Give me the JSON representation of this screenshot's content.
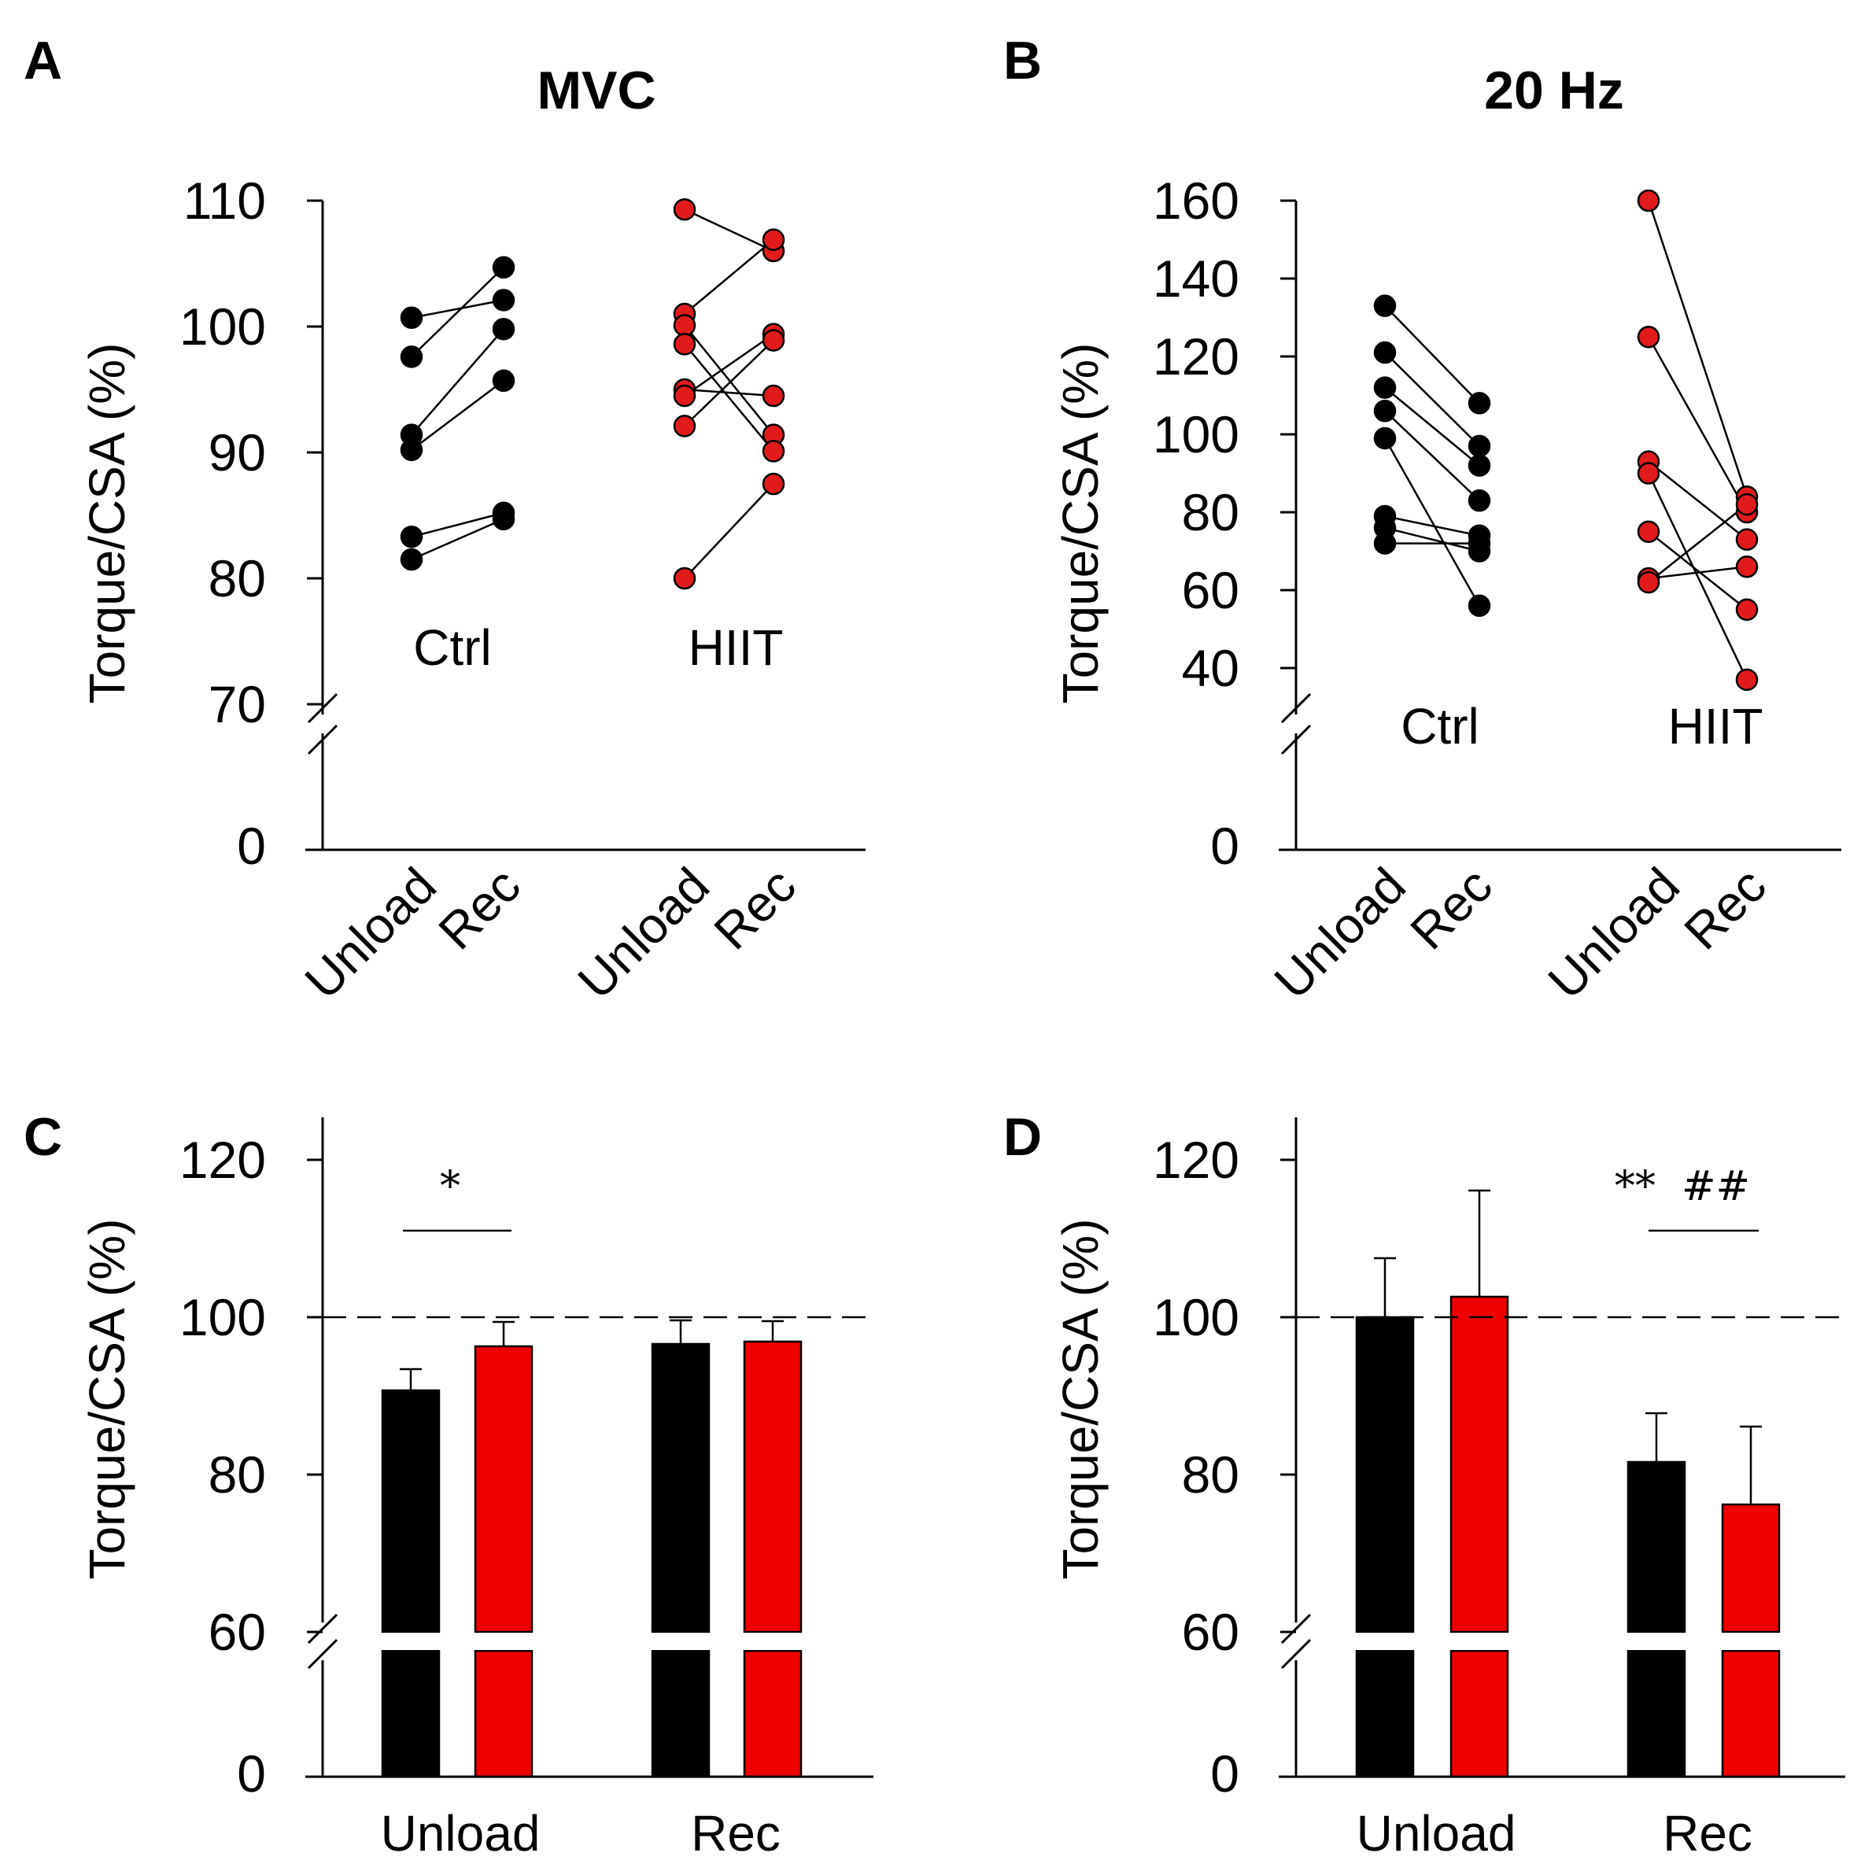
{
  "colors": {
    "ctrl": "#000000",
    "hiit": "#e11b1b",
    "hiit_bar": "#ee0000"
  },
  "chart_data": [
    {
      "panel": "A",
      "type": "scatter",
      "title": "MVC",
      "ylabel": "Torque/CSA (%)",
      "ylim": [
        70,
        110
      ],
      "yticks": [
        "110",
        "100",
        "90",
        "80",
        "70"
      ],
      "yzero": "0",
      "axis_break": true,
      "xlabels": [
        "Unload",
        "Rec",
        "Unload",
        "Rec"
      ],
      "groups": [
        {
          "name": "Ctrl",
          "color": "#000000",
          "pairs": [
            [
              100.7,
              102.1
            ],
            [
              97.6,
              104.7
            ],
            [
              91.4,
              99.8
            ],
            [
              90.2,
              95.7
            ],
            [
              83.3,
              85.2
            ],
            [
              81.5,
              84.7
            ]
          ]
        },
        {
          "name": "HIIT",
          "color": "#e11b1b",
          "pairs": [
            [
              109.3,
              106.0
            ],
            [
              101.0,
              106.9
            ],
            [
              100.1,
              91.4
            ],
            [
              98.6,
              90.1
            ],
            [
              95.0,
              94.5
            ],
            [
              94.5,
              99.4
            ],
            [
              92.1,
              98.9
            ],
            [
              80.0,
              87.5
            ]
          ]
        }
      ]
    },
    {
      "panel": "B",
      "type": "scatter",
      "title": "20 Hz",
      "ylabel": "Torque/CSA (%)",
      "ylim": [
        30,
        160
      ],
      "yticks": [
        "160",
        "140",
        "120",
        "100",
        "80",
        "60",
        "40"
      ],
      "yzero": "0",
      "axis_break": true,
      "xlabels": [
        "Unload",
        "Rec",
        "Unload",
        "Rec"
      ],
      "groups": [
        {
          "name": "Ctrl",
          "color": "#000000",
          "pairs": [
            [
              133.0,
              108.0
            ],
            [
              121.0,
              97.0
            ],
            [
              112.0,
              92.0
            ],
            [
              106.0,
              83.0
            ],
            [
              99.0,
              56.0
            ],
            [
              79.0,
              74.0
            ],
            [
              76.0,
              70.0
            ],
            [
              72.0,
              72.0
            ]
          ]
        },
        {
          "name": "HIIT",
          "color": "#e11b1b",
          "pairs": [
            [
              160.0,
              84.0
            ],
            [
              125.0,
              80.0
            ],
            [
              93.0,
              73.0
            ],
            [
              90.0,
              37.0
            ],
            [
              75.0,
              55.0
            ],
            [
              63.0,
              66.0
            ],
            [
              62.0,
              82.0
            ]
          ]
        }
      ]
    },
    {
      "panel": "C",
      "type": "bar",
      "ylabel": "Torque/CSA (%)",
      "ylim": [
        60,
        125
      ],
      "yticks": [
        "120",
        "100",
        "80",
        "60"
      ],
      "yzero": "0",
      "axis_break": true,
      "reference_line": 100,
      "categories": [
        "Unload",
        "Rec"
      ],
      "series": [
        {
          "name": "Ctrl",
          "color": "#000000",
          "values": [
            90.7,
            96.6
          ],
          "errors": [
            2.7,
            3.0
          ]
        },
        {
          "name": "HIIT",
          "color": "#ee0000",
          "values": [
            96.3,
            96.9
          ],
          "errors": [
            3.1,
            2.6
          ]
        }
      ],
      "annotation": {
        "category": "Unload",
        "text": "*",
        "level": 111
      }
    },
    {
      "panel": "D",
      "type": "bar",
      "ylabel": "Torque/CSA (%)",
      "ylim": [
        60,
        125
      ],
      "yticks": [
        "120",
        "100",
        "80",
        "60"
      ],
      "yzero": "0",
      "axis_break": true,
      "reference_line": 100,
      "categories": [
        "Unload",
        "Rec"
      ],
      "series": [
        {
          "name": "Ctrl",
          "color": "#000000",
          "values": [
            100.0,
            81.6
          ],
          "errors": [
            7.5,
            6.2
          ]
        },
        {
          "name": "HIIT",
          "color": "#ee0000",
          "values": [
            102.6,
            76.2
          ],
          "errors": [
            13.5,
            9.9
          ]
        }
      ],
      "annotation": {
        "category": "Rec",
        "text": "**  ##",
        "level": 111
      }
    }
  ]
}
